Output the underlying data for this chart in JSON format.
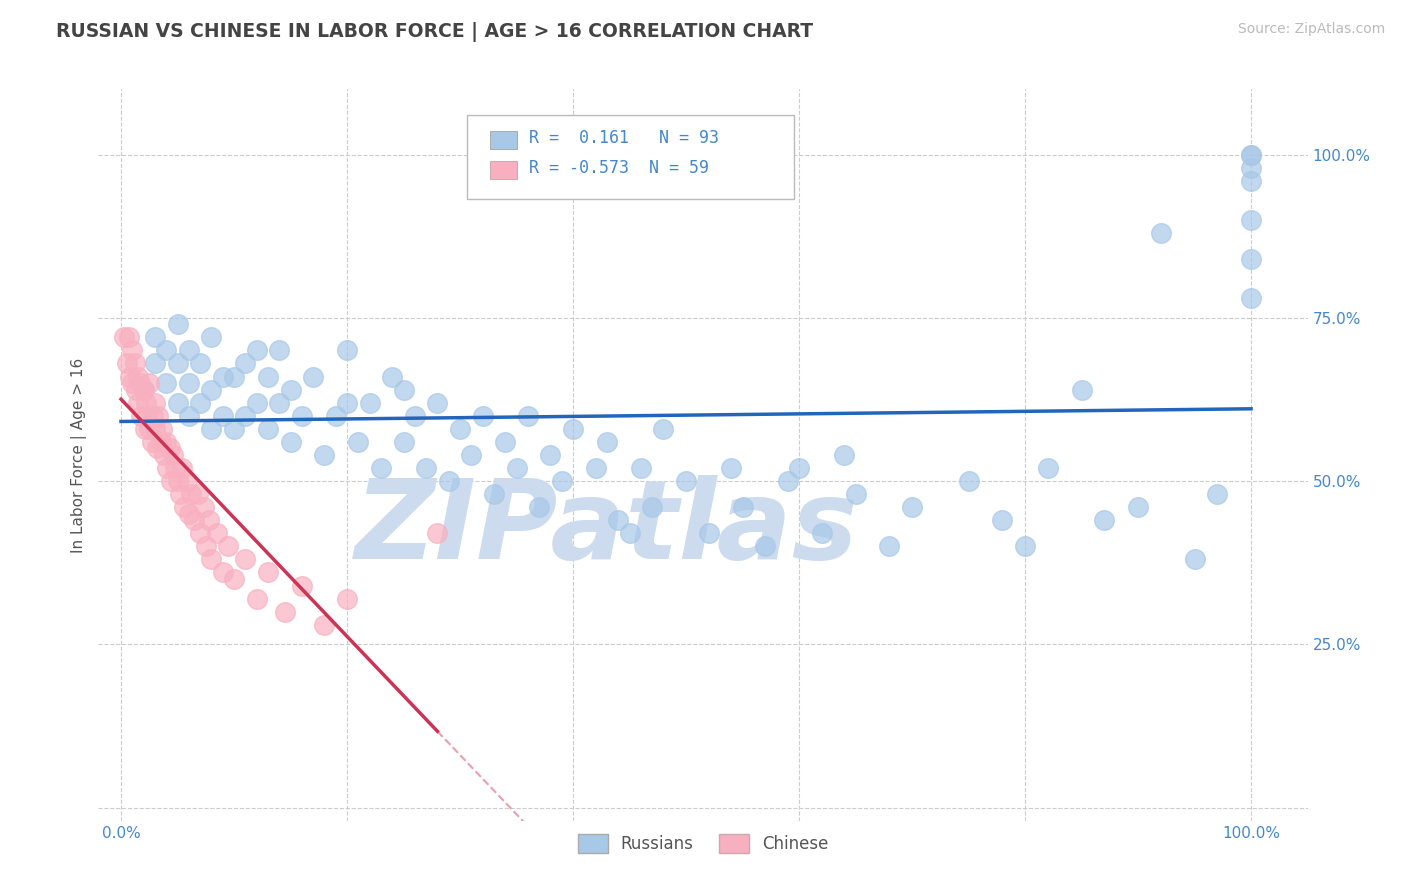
{
  "title": "RUSSIAN VS CHINESE IN LABOR FORCE | AGE > 16 CORRELATION CHART",
  "source_text": "Source: ZipAtlas.com",
  "ylabel": "In Labor Force | Age > 16",
  "x_ticks": [
    0.0,
    0.2,
    0.4,
    0.6,
    0.8,
    1.0
  ],
  "y_ticks": [
    0.0,
    0.25,
    0.5,
    0.75,
    1.0
  ],
  "y_tick_labels": [
    "",
    "25.0%",
    "50.0%",
    "75.0%",
    "100.0%"
  ],
  "xlim": [
    -0.02,
    1.05
  ],
  "ylim": [
    -0.02,
    1.1
  ],
  "blue_R": 0.161,
  "blue_N": 93,
  "pink_R": -0.573,
  "pink_N": 59,
  "blue_color": "#a8c8e8",
  "pink_color": "#f8b0c0",
  "blue_line_color": "#2266bb",
  "pink_line_color": "#cc3355",
  "pink_line_dashed_color": "#e8a0b0",
  "grid_color": "#cccccc",
  "title_color": "#444444",
  "tick_color": "#4488cc",
  "watermark_color": "#ccdcee",
  "watermark_text": "ZIPatlas",
  "legend_label_blue": "Russians",
  "legend_label_pink": "Chinese",
  "blue_scatter_x": [
    0.02,
    0.03,
    0.03,
    0.04,
    0.04,
    0.05,
    0.05,
    0.05,
    0.06,
    0.06,
    0.06,
    0.07,
    0.07,
    0.08,
    0.08,
    0.08,
    0.09,
    0.09,
    0.1,
    0.1,
    0.11,
    0.11,
    0.12,
    0.12,
    0.13,
    0.13,
    0.14,
    0.14,
    0.15,
    0.15,
    0.16,
    0.17,
    0.18,
    0.19,
    0.2,
    0.2,
    0.21,
    0.22,
    0.23,
    0.24,
    0.25,
    0.25,
    0.26,
    0.27,
    0.28,
    0.29,
    0.3,
    0.31,
    0.32,
    0.33,
    0.34,
    0.35,
    0.36,
    0.37,
    0.38,
    0.39,
    0.4,
    0.42,
    0.43,
    0.44,
    0.45,
    0.46,
    0.47,
    0.48,
    0.5,
    0.52,
    0.54,
    0.55,
    0.57,
    0.59,
    0.6,
    0.62,
    0.64,
    0.65,
    0.68,
    0.7,
    0.75,
    0.78,
    0.8,
    0.82,
    0.85,
    0.87,
    0.9,
    0.92,
    0.95,
    0.97,
    1.0,
    1.0,
    1.0,
    1.0,
    1.0,
    1.0,
    1.0
  ],
  "blue_scatter_y": [
    0.64,
    0.68,
    0.72,
    0.65,
    0.7,
    0.62,
    0.68,
    0.74,
    0.6,
    0.65,
    0.7,
    0.62,
    0.68,
    0.58,
    0.64,
    0.72,
    0.6,
    0.66,
    0.58,
    0.66,
    0.6,
    0.68,
    0.62,
    0.7,
    0.58,
    0.66,
    0.62,
    0.7,
    0.56,
    0.64,
    0.6,
    0.66,
    0.54,
    0.6,
    0.62,
    0.7,
    0.56,
    0.62,
    0.52,
    0.66,
    0.56,
    0.64,
    0.6,
    0.52,
    0.62,
    0.5,
    0.58,
    0.54,
    0.6,
    0.48,
    0.56,
    0.52,
    0.6,
    0.46,
    0.54,
    0.5,
    0.58,
    0.52,
    0.56,
    0.44,
    0.42,
    0.52,
    0.46,
    0.58,
    0.5,
    0.42,
    0.52,
    0.46,
    0.4,
    0.5,
    0.52,
    0.42,
    0.54,
    0.48,
    0.4,
    0.46,
    0.5,
    0.44,
    0.4,
    0.52,
    0.64,
    0.44,
    0.46,
    0.88,
    0.38,
    0.48,
    0.78,
    0.84,
    0.9,
    0.96,
    0.98,
    1.0,
    1.0
  ],
  "pink_scatter_x": [
    0.003,
    0.005,
    0.007,
    0.008,
    0.01,
    0.01,
    0.012,
    0.013,
    0.015,
    0.015,
    0.017,
    0.018,
    0.02,
    0.021,
    0.022,
    0.023,
    0.025,
    0.025,
    0.027,
    0.028,
    0.03,
    0.03,
    0.032,
    0.033,
    0.035,
    0.036,
    0.038,
    0.04,
    0.041,
    0.043,
    0.044,
    0.046,
    0.048,
    0.05,
    0.052,
    0.054,
    0.056,
    0.058,
    0.06,
    0.062,
    0.065,
    0.068,
    0.07,
    0.073,
    0.075,
    0.078,
    0.08,
    0.085,
    0.09,
    0.095,
    0.1,
    0.11,
    0.12,
    0.13,
    0.145,
    0.16,
    0.18,
    0.2,
    0.28
  ],
  "pink_scatter_y": [
    0.72,
    0.68,
    0.72,
    0.66,
    0.7,
    0.65,
    0.68,
    0.64,
    0.66,
    0.62,
    0.65,
    0.6,
    0.64,
    0.58,
    0.62,
    0.6,
    0.58,
    0.65,
    0.56,
    0.6,
    0.58,
    0.62,
    0.55,
    0.6,
    0.56,
    0.58,
    0.54,
    0.56,
    0.52,
    0.55,
    0.5,
    0.54,
    0.52,
    0.5,
    0.48,
    0.52,
    0.46,
    0.5,
    0.45,
    0.48,
    0.44,
    0.48,
    0.42,
    0.46,
    0.4,
    0.44,
    0.38,
    0.42,
    0.36,
    0.4,
    0.35,
    0.38,
    0.32,
    0.36,
    0.3,
    0.34,
    0.28,
    0.32,
    0.42
  ]
}
